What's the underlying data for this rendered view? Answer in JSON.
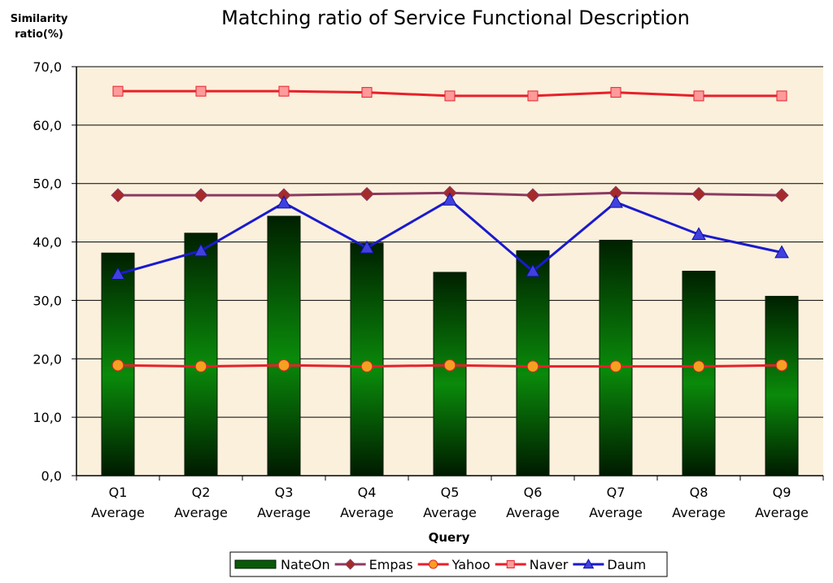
{
  "chart_data": {
    "type": "bar",
    "title": "Matching ratio of Service Functional Description",
    "ylabel": [
      "Similarity",
      "ratio(%)"
    ],
    "xlabel": "Query",
    "ylim": [
      0,
      70
    ],
    "yticks": [
      "0,0",
      "10,0",
      "20,0",
      "30,0",
      "40,0",
      "50,0",
      "60,0",
      "70,0"
    ],
    "grid": true,
    "legend_position": "bottom",
    "categories": [
      [
        "Q1",
        "Average"
      ],
      [
        "Q2",
        "Average"
      ],
      [
        "Q3",
        "Average"
      ],
      [
        "Q4",
        "Average"
      ],
      [
        "Q5",
        "Average"
      ],
      [
        "Q6",
        "Average"
      ],
      [
        "Q7",
        "Average"
      ],
      [
        "Q8",
        "Average"
      ],
      [
        "Q9",
        "Average"
      ]
    ],
    "series": [
      {
        "name": "NateOn",
        "kind": "bar",
        "color": "#0a7a0a",
        "values": [
          38.1,
          41.5,
          44.4,
          39.8,
          34.8,
          38.5,
          40.3,
          35.0,
          30.7
        ]
      },
      {
        "name": "Empas",
        "kind": "line",
        "marker": "diamond",
        "color": "#8b3a62",
        "marker_color": "#a52a2a",
        "values": [
          48.0,
          48.0,
          48.0,
          48.2,
          48.4,
          48.0,
          48.4,
          48.2,
          48.0
        ]
      },
      {
        "name": "Yahoo",
        "kind": "line",
        "marker": "circle",
        "color": "#e8202a",
        "marker_color": "#f5a020",
        "values": [
          18.9,
          18.7,
          18.9,
          18.7,
          18.9,
          18.7,
          18.7,
          18.7,
          18.9
        ]
      },
      {
        "name": "Naver",
        "kind": "line",
        "marker": "square",
        "color": "#e8202a",
        "marker_color": "#ff9a9a",
        "values": [
          65.8,
          65.8,
          65.8,
          65.6,
          65.0,
          65.0,
          65.6,
          65.0,
          65.0
        ]
      },
      {
        "name": "Daum",
        "kind": "line",
        "marker": "triangle",
        "color": "#1a1acd",
        "marker_color": "#4040e0",
        "values": [
          34.5,
          38.5,
          46.7,
          39.0,
          47.2,
          35.0,
          46.8,
          41.3,
          38.2
        ]
      }
    ],
    "plot_background": "#fbf0dc"
  }
}
